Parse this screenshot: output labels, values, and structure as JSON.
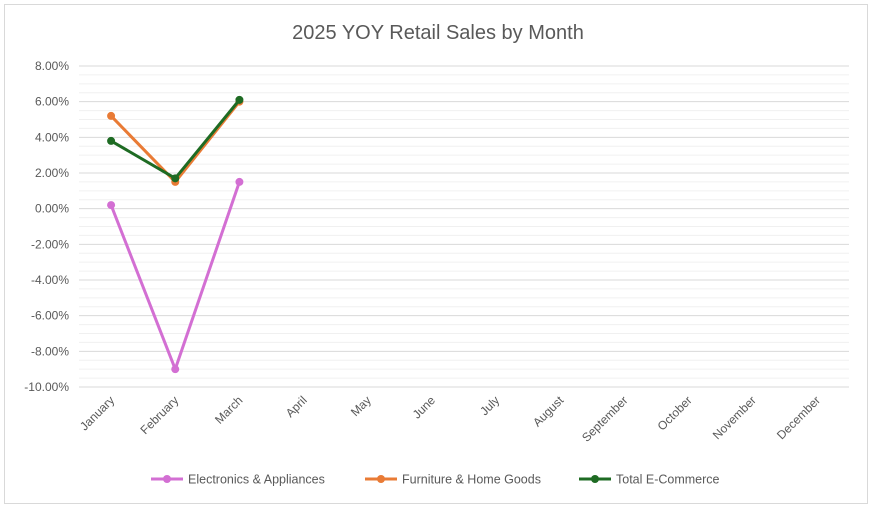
{
  "chart_data": {
    "type": "line",
    "title": "2025 YOY Retail Sales by Month",
    "xlabel": "",
    "ylabel": "",
    "categories": [
      "January",
      "February",
      "March",
      "April",
      "May",
      "June",
      "July",
      "August",
      "September",
      "October",
      "November",
      "December"
    ],
    "y_tick_labels": [
      "8.00%",
      "6.00%",
      "4.00%",
      "2.00%",
      "0.00%",
      "-2.00%",
      "-4.00%",
      "-6.00%",
      "-8.00%",
      "-10.00%"
    ],
    "ylim": [
      -10,
      8
    ],
    "y_unit": "percent",
    "grid": true,
    "legend_position": "bottom",
    "series": [
      {
        "name": "Electronics & Appliances",
        "color": "#d36fd3",
        "values": [
          0.2,
          -9.0,
          1.5,
          null,
          null,
          null,
          null,
          null,
          null,
          null,
          null,
          null
        ]
      },
      {
        "name": "Furniture & Home Goods",
        "color": "#e97b35",
        "values": [
          5.2,
          1.5,
          6.0,
          null,
          null,
          null,
          null,
          null,
          null,
          null,
          null,
          null
        ]
      },
      {
        "name": "Total E-Commerce",
        "color": "#1e6b23",
        "values": [
          3.8,
          1.7,
          6.1,
          null,
          null,
          null,
          null,
          null,
          null,
          null,
          null,
          null
        ]
      }
    ]
  }
}
